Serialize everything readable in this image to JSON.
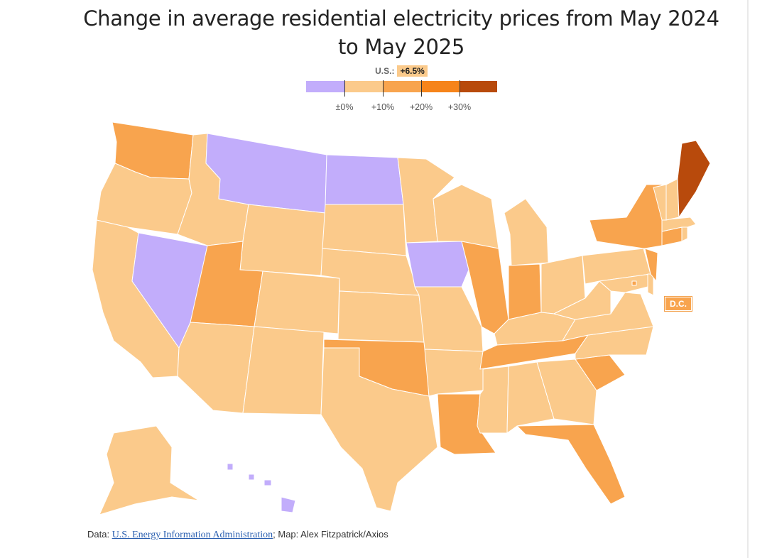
{
  "title": "Change in average residential electricity prices from May 2024 to May 2025",
  "national": {
    "label": "U.S.:",
    "value": "+6.5%",
    "color": "#fbca8b"
  },
  "legend": {
    "bins": [
      {
        "color": "#c2adfb",
        "range": "below 0%"
      },
      {
        "color": "#fbca8b",
        "range": "0% to +10%"
      },
      {
        "color": "#f8a44e",
        "range": "+10% to +20%"
      },
      {
        "color": "#f6841a",
        "range": "+20% to +30%"
      },
      {
        "color": "#b84a0c",
        "range": "above +30%"
      }
    ],
    "ticks": [
      "±0%",
      "+10%",
      "+20%",
      "+30%"
    ]
  },
  "map_data": {
    "type": "choropleth",
    "region": "United States",
    "categories": {
      "decline": {
        "color": "#c2adfb",
        "states": [
          "Montana",
          "North Dakota",
          "Nevada",
          "Iowa",
          "Hawaii"
        ]
      },
      "0_to_10": {
        "color": "#fbca8b",
        "states": [
          "Oregon",
          "California",
          "Idaho",
          "Wyoming",
          "South Dakota",
          "Nebraska",
          "Colorado",
          "Kansas",
          "Arizona",
          "New Mexico",
          "Texas",
          "Minnesota",
          "Wisconsin",
          "Michigan",
          "Missouri",
          "Arkansas",
          "Mississippi",
          "Alabama",
          "Georgia",
          "Kentucky",
          "Ohio",
          "West Virginia",
          "Virginia",
          "North Carolina",
          "Pennsylvania",
          "Maryland",
          "Delaware",
          "Vermont",
          "New Hampshire",
          "Massachusetts",
          "Rhode Island",
          "Alaska"
        ]
      },
      "10_to_20": {
        "color": "#f8a44e",
        "states": [
          "Washington",
          "Utah",
          "Oklahoma",
          "Louisiana",
          "Illinois",
          "Indiana",
          "Tennessee",
          "South Carolina",
          "Florida",
          "New York",
          "New Jersey",
          "Connecticut",
          "District of Columbia"
        ]
      },
      "20_to_30": {
        "color": "#f6841a",
        "states": []
      },
      "above_30": {
        "color": "#b84a0c",
        "states": [
          "Maine"
        ]
      }
    },
    "dc_label": "D.C."
  },
  "footer": {
    "prefix": "Data: ",
    "source_link": "U.S. Energy Information Administration",
    "suffix": "; Map: Alex Fitzpatrick/Axios"
  }
}
